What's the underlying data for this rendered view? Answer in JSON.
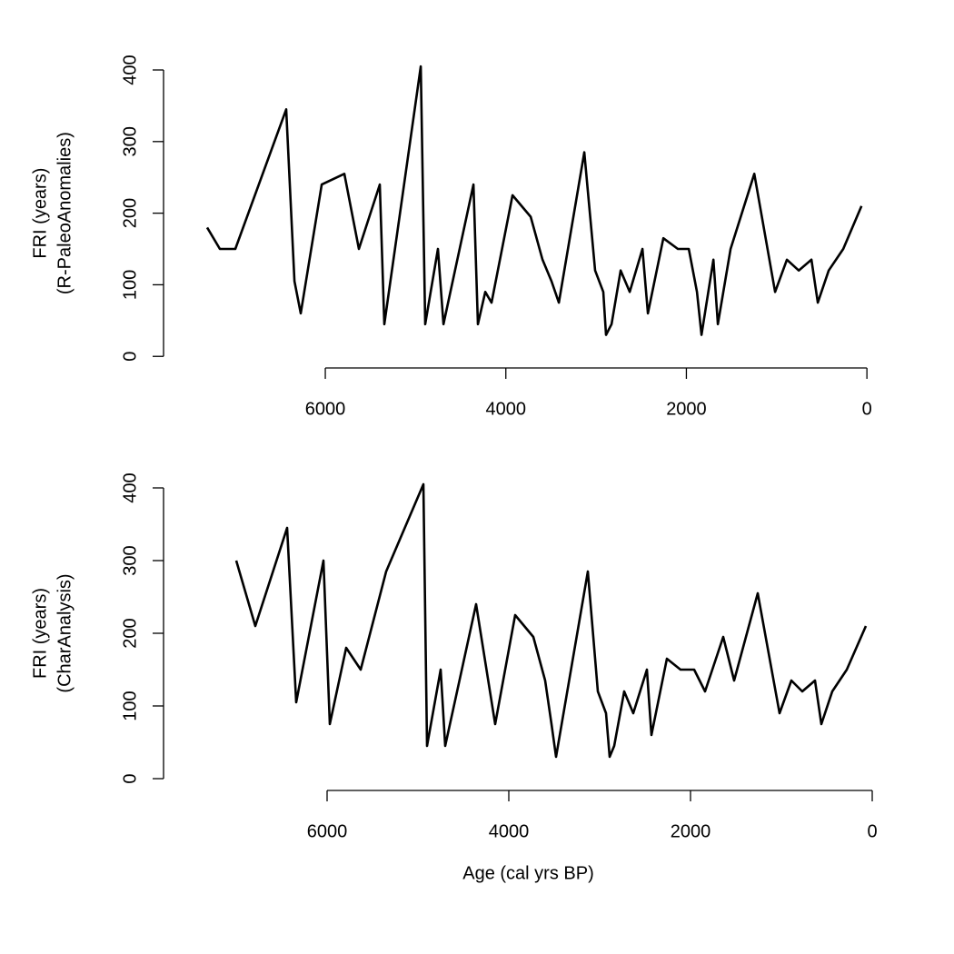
{
  "chart_data": [
    {
      "type": "line",
      "color": "#000000",
      "ylabel": [
        "FRI (years)",
        "(R-PaleoAnomalies)"
      ],
      "x": [
        7309,
        7168,
        6997,
        6433,
        6342,
        6272,
        6040,
        5789,
        5628,
        5396,
        5346,
        4943,
        4893,
        4752,
        4691,
        4359,
        4309,
        4228,
        4158,
        3926,
        3725,
        3594,
        3494,
        3413,
        3131,
        3011,
        2920,
        2890,
        2829,
        2728,
        2628,
        2487,
        2426,
        2255,
        2094,
        1973,
        1883,
        1832,
        1701,
        1651,
        1510,
        1248,
        1017,
        886,
        755,
        614,
        544,
        423,
        262,
        60
      ],
      "values": [
        180,
        150,
        150,
        345,
        105,
        60,
        240,
        255,
        150,
        240,
        45,
        405,
        45,
        150,
        45,
        240,
        45,
        90,
        75,
        225,
        195,
        135,
        105,
        75,
        285,
        120,
        90,
        30,
        45,
        120,
        90,
        150,
        60,
        165,
        150,
        150,
        90,
        30,
        135,
        45,
        150,
        255,
        90,
        135,
        120,
        135,
        75,
        120,
        150,
        210
      ],
      "xlim": [
        7792,
        -230
      ],
      "xticks": [
        6000,
        4000,
        2000,
        0
      ],
      "ylim": [
        -16.2,
        421.2
      ],
      "yticks": [
        0,
        100,
        200,
        300,
        400
      ]
    },
    {
      "type": "line",
      "color": "#000000",
      "ylabel": [
        "FRI (years)",
        "(CharAnalysis)"
      ],
      "xlabel": "Age (cal yrs BP)",
      "x": [
        7000,
        6790,
        6440,
        6340,
        6040,
        5970,
        5790,
        5630,
        5350,
        4940,
        4900,
        4750,
        4700,
        4360,
        4150,
        3930,
        3730,
        3600,
        3530,
        3480,
        3130,
        3020,
        2930,
        2890,
        2840,
        2730,
        2630,
        2480,
        2430,
        2260,
        2110,
        1960,
        1840,
        1640,
        1520,
        1260,
        1020,
        890,
        770,
        630,
        560,
        440,
        280,
        70
      ],
      "values": [
        300,
        210,
        345,
        105,
        300,
        75,
        180,
        150,
        285,
        405,
        45,
        150,
        45,
        240,
        75,
        225,
        195,
        135,
        75,
        30,
        285,
        120,
        90,
        30,
        45,
        120,
        90,
        150,
        60,
        165,
        150,
        150,
        120,
        195,
        135,
        255,
        90,
        135,
        120,
        135,
        75,
        120,
        150,
        210
      ],
      "xlim": [
        7800,
        -230
      ],
      "xticks": [
        6000,
        4000,
        2000,
        0
      ],
      "ylim": [
        -16.25,
        421.25
      ],
      "yticks": [
        0,
        100,
        200,
        300,
        400
      ]
    }
  ]
}
